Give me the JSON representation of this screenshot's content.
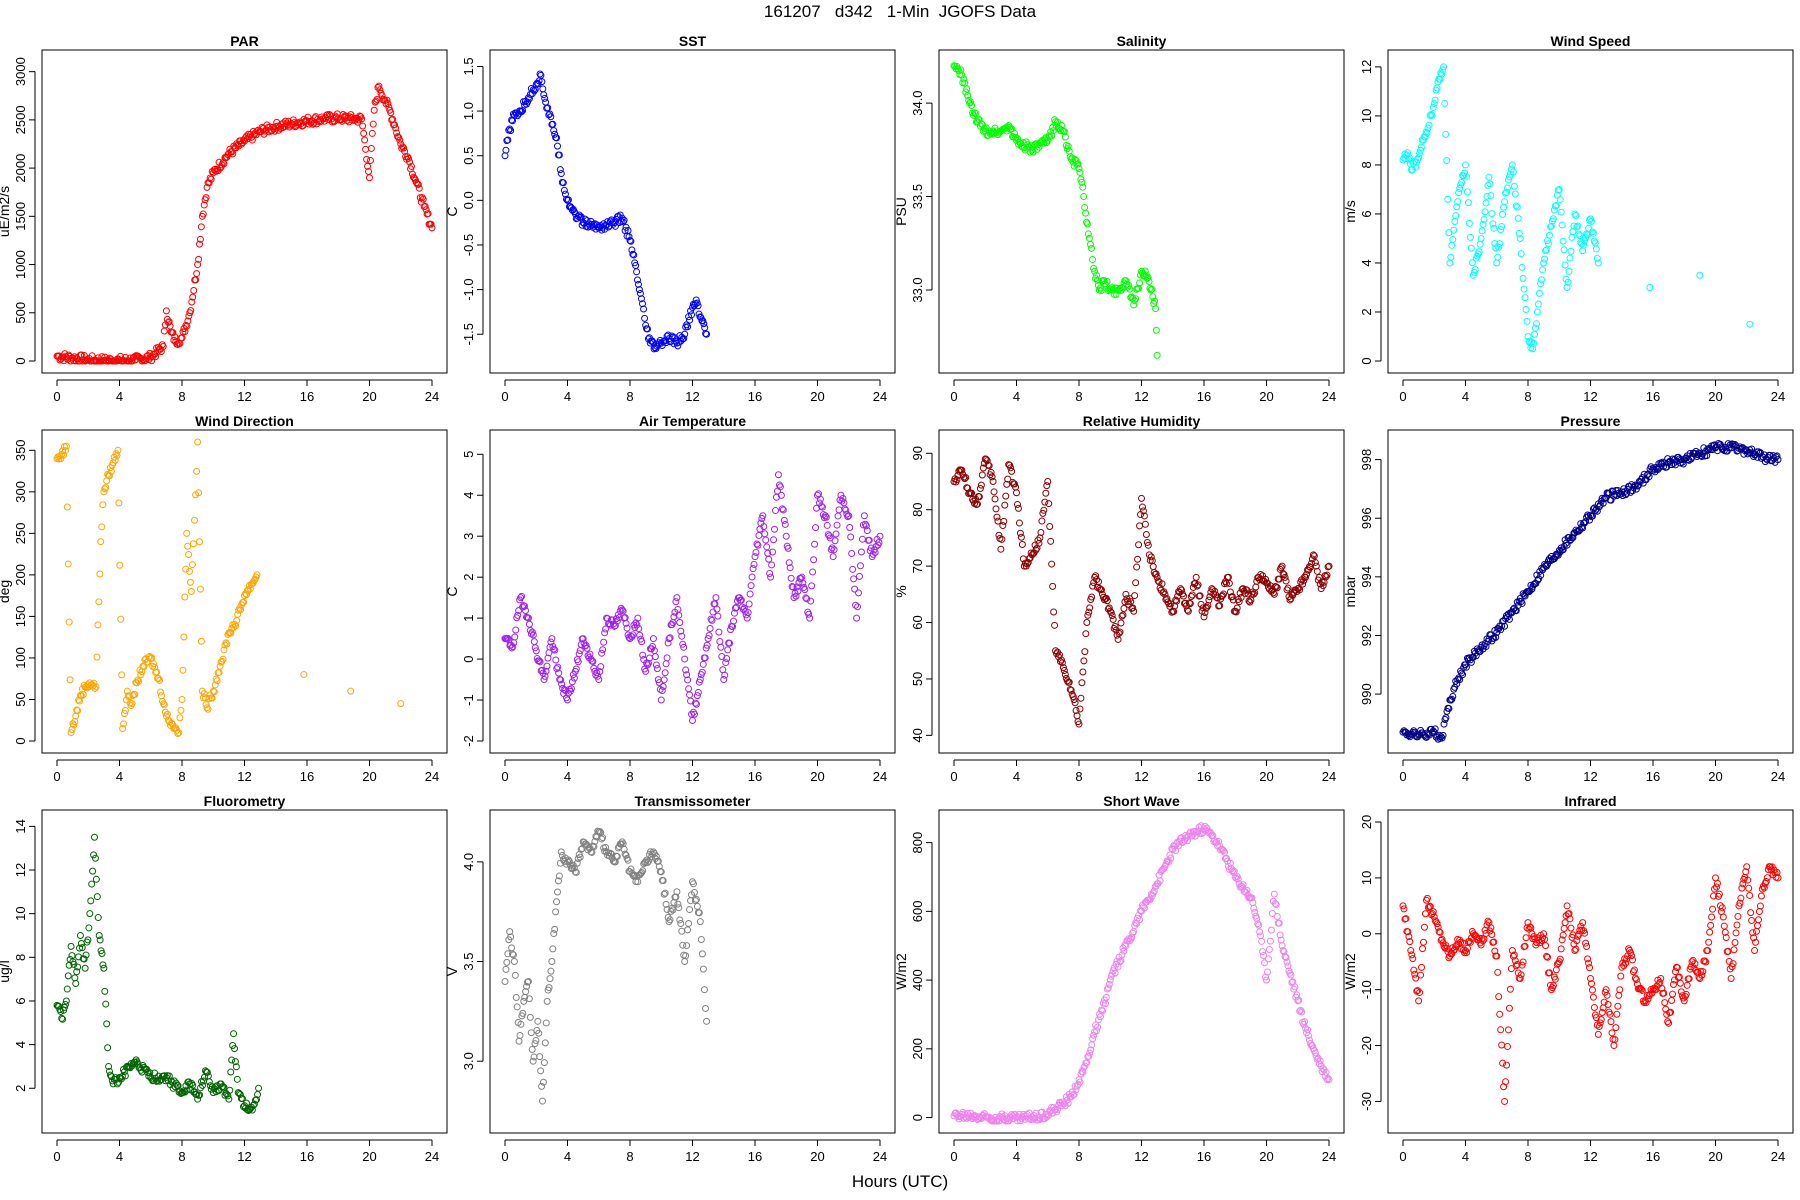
{
  "title": "161207   d342   1-Min  JGOFS Data",
  "x_axis_label": "Hours (UTC)",
  "chart_data": [
    {
      "type": "scatter",
      "title": "PAR",
      "ylabel": "uE/m2/s",
      "color": "#ff0000",
      "xlim": [
        0,
        24
      ],
      "xticks": [
        0,
        4,
        8,
        12,
        16,
        20,
        24
      ],
      "ylim": [
        0,
        3100
      ],
      "yticks": [
        0,
        500,
        1000,
        1500,
        2000,
        2500,
        3000
      ],
      "x": [
        0,
        1,
        2,
        3,
        4,
        5,
        6,
        6.8,
        7,
        7.3,
        7.6,
        8,
        8.5,
        9,
        9.3,
        9.6,
        10,
        11,
        12,
        13,
        14,
        15,
        16,
        17,
        18,
        19,
        19.5,
        20,
        20.3,
        20.6,
        21,
        21.3,
        21.6,
        22,
        22.5,
        23,
        23.5,
        24
      ],
      "y": [
        50,
        30,
        10,
        5,
        5,
        10,
        40,
        150,
        520,
        300,
        200,
        240,
        500,
        1000,
        1500,
        1800,
        1950,
        2150,
        2280,
        2380,
        2430,
        2460,
        2490,
        2510,
        2520,
        2510,
        2510,
        1900,
        2600,
        2850,
        2700,
        2600,
        2450,
        2250,
        2100,
        1850,
        1600,
        1380
      ]
    },
    {
      "type": "scatter",
      "title": "SST",
      "ylabel": "C",
      "color": "#0000ff",
      "xlim": [
        0,
        24
      ],
      "xticks": [
        0,
        4,
        8,
        12,
        16,
        20,
        24
      ],
      "ylim": [
        -1.8,
        1.55
      ],
      "yticks": [
        -1.5,
        -1.0,
        -0.5,
        0.0,
        0.5,
        1.0,
        1.5
      ],
      "x": [
        0,
        0.3,
        0.6,
        1,
        1.5,
        2,
        2.3,
        2.6,
        3,
        3.3,
        3.6,
        4,
        4.5,
        5,
        6,
        7,
        7.5,
        8,
        8.3,
        8.6,
        9,
        9.3,
        9.6,
        10,
        10.5,
        11,
        11.5,
        12,
        12.3,
        12.6,
        12.9
      ],
      "y": [
        0.5,
        0.8,
        0.95,
        1.0,
        1.15,
        1.3,
        1.4,
        1.1,
        0.85,
        0.7,
        0.3,
        0.0,
        -0.15,
        -0.25,
        -0.3,
        -0.25,
        -0.2,
        -0.45,
        -0.7,
        -1.0,
        -1.4,
        -1.6,
        -1.65,
        -1.6,
        -1.55,
        -1.6,
        -1.5,
        -1.2,
        -1.15,
        -1.35,
        -1.5
      ]
    },
    {
      "type": "scatter",
      "title": "Salinity",
      "ylabel": "PSU",
      "color": "#00ff00",
      "xlim": [
        0,
        24
      ],
      "xticks": [
        0,
        4,
        8,
        12,
        16,
        20,
        24
      ],
      "ylim": [
        32.62,
        34.22
      ],
      "yticks": [
        33.0,
        33.5,
        34.0
      ],
      "x": [
        0,
        0.5,
        1,
        1.5,
        2,
        2.5,
        3,
        3.5,
        4,
        5,
        6,
        6.5,
        7,
        7.5,
        8,
        8.3,
        8.6,
        9,
        9.3,
        9.6,
        10,
        10.5,
        11,
        11.5,
        12,
        12.3,
        12.6,
        12.9,
        13
      ],
      "y": [
        34.2,
        34.15,
        34.0,
        33.9,
        33.85,
        33.85,
        33.85,
        33.88,
        33.8,
        33.75,
        33.8,
        33.9,
        33.85,
        33.7,
        33.65,
        33.5,
        33.3,
        33.1,
        33.0,
        33.05,
        33.0,
        33.0,
        33.05,
        32.92,
        33.1,
        33.08,
        33.0,
        32.9,
        32.65
      ]
    },
    {
      "type": "scatter",
      "title": "Wind Speed",
      "ylabel": "m/s",
      "color": "#00ffff",
      "xlim": [
        0,
        24
      ],
      "xticks": [
        0,
        4,
        8,
        12,
        16,
        20,
        24
      ],
      "ylim": [
        0,
        12.2
      ],
      "yticks": [
        0,
        2,
        4,
        6,
        8,
        10,
        12
      ],
      "x": [
        0,
        0.3,
        0.6,
        1,
        1.3,
        1.6,
        2,
        2.3,
        2.6,
        3,
        3.5,
        4,
        4.5,
        5,
        5.5,
        6,
        6.5,
        7,
        7.5,
        8,
        8.3,
        8.6,
        9,
        9.5,
        10,
        10.5,
        11,
        11.5,
        12,
        12.5,
        15.8,
        19,
        22.2
      ],
      "y": [
        8.2,
        8.5,
        7.8,
        8.3,
        9.0,
        9.5,
        10.5,
        11.5,
        12.0,
        4.0,
        6.5,
        8.0,
        3.5,
        5.0,
        7.5,
        4.0,
        6.5,
        8.0,
        5.0,
        1.0,
        0.5,
        2.0,
        4.0,
        5.5,
        7.0,
        3.0,
        6.0,
        4.5,
        5.8,
        4.0,
        3.0,
        3.5,
        1.5
      ]
    },
    {
      "type": "scatter",
      "title": "Wind Direction",
      "ylabel": "deg",
      "color": "#ffa500",
      "xlim": [
        0,
        24
      ],
      "xticks": [
        0,
        4,
        8,
        12,
        16,
        20,
        24
      ],
      "ylim": [
        0,
        360
      ],
      "yticks": [
        0,
        50,
        100,
        150,
        200,
        250,
        300,
        350
      ],
      "x": [
        0,
        0.3,
        0.6,
        0.9,
        1.2,
        1.5,
        1.8,
        2.1,
        2.5,
        2.8,
        3,
        3.3,
        3.6,
        3.9,
        4.2,
        4.5,
        4.8,
        5.1,
        5.5,
        6,
        6.5,
        7,
        7.4,
        7.8,
        8,
        8.3,
        8.6,
        9,
        9.3,
        9.6,
        10,
        10.5,
        11,
        11.5,
        12,
        12.5,
        12.8,
        15.8,
        18.8,
        22
      ],
      "y": [
        340,
        345,
        355,
        10,
        30,
        55,
        65,
        70,
        65,
        240,
        300,
        320,
        335,
        350,
        15,
        60,
        45,
        70,
        90,
        100,
        75,
        30,
        20,
        10,
        50,
        250,
        180,
        360,
        60,
        40,
        60,
        95,
        130,
        145,
        175,
        190,
        200,
        80,
        60,
        45
      ]
    },
    {
      "type": "scatter",
      "title": "Air Temperature",
      "ylabel": "C",
      "color": "#a020f0",
      "xlim": [
        0,
        24
      ],
      "xticks": [
        0,
        4,
        8,
        12,
        16,
        20,
        24
      ],
      "ylim": [
        -2,
        5.3
      ],
      "yticks": [
        -2,
        -1,
        0,
        1,
        2,
        3,
        4,
        5
      ],
      "x": [
        0,
        0.5,
        1,
        1.5,
        2,
        2.5,
        3,
        3.5,
        4,
        4.5,
        5,
        5.5,
        6,
        6.5,
        7,
        7.5,
        8,
        8.5,
        9,
        9.5,
        10,
        10.5,
        11,
        11.5,
        12,
        12.5,
        13,
        13.5,
        14,
        14.5,
        15,
        15.5,
        16,
        16.5,
        17,
        17.5,
        18,
        18.5,
        19,
        19.5,
        20,
        20.5,
        21,
        21.5,
        22,
        22.5,
        23,
        23.5,
        24
      ],
      "y": [
        0.5,
        0.3,
        1.5,
        1.0,
        0.2,
        -0.5,
        0.5,
        -0.5,
        -1.0,
        -0.3,
        0.5,
        0.0,
        -0.5,
        1.0,
        0.8,
        1.2,
        0.5,
        1.0,
        -0.3,
        0.5,
        -1.0,
        0.5,
        1.5,
        0.0,
        -1.5,
        -0.5,
        0.5,
        1.5,
        -0.5,
        0.8,
        1.5,
        1.0,
        2.5,
        3.5,
        2.0,
        4.5,
        3.0,
        1.5,
        2.0,
        1.0,
        4.0,
        3.5,
        2.5,
        4.0,
        3.5,
        1.0,
        3.5,
        2.5,
        3.0
      ]
    },
    {
      "type": "scatter",
      "title": "Relative Humidity",
      "ylabel": "%",
      "color": "#8b0000",
      "xlim": [
        0,
        24
      ],
      "xticks": [
        0,
        4,
        8,
        12,
        16,
        20,
        24
      ],
      "ylim": [
        39,
        92
      ],
      "yticks": [
        40,
        50,
        60,
        70,
        80,
        90
      ],
      "x": [
        0,
        0.5,
        1,
        1.5,
        2,
        2.5,
        3,
        3.5,
        4,
        4.5,
        5,
        5.5,
        6,
        6.5,
        7,
        7.5,
        8,
        8.5,
        9,
        9.5,
        10,
        10.5,
        11,
        11.5,
        12,
        12.5,
        13,
        13.5,
        14,
        14.5,
        15,
        15.5,
        16,
        16.5,
        17,
        17.5,
        18,
        18.5,
        19,
        19.5,
        20,
        20.5,
        21,
        21.5,
        22,
        22.5,
        23,
        23.5,
        24
      ],
      "y": [
        85,
        87,
        83,
        81,
        89,
        85,
        73,
        88,
        83,
        70,
        72,
        75,
        85,
        55,
        52,
        48,
        42,
        60,
        68,
        65,
        62,
        57,
        65,
        62,
        82,
        72,
        68,
        65,
        62,
        66,
        62,
        68,
        61,
        66,
        63,
        68,
        62,
        66,
        64,
        68,
        67,
        65,
        70,
        64,
        66,
        68,
        72,
        66,
        70
      ]
    },
    {
      "type": "scatter",
      "title": "Pressure",
      "ylabel": "mbar",
      "color": "#00008b",
      "xlim": [
        0,
        24
      ],
      "xticks": [
        0,
        4,
        8,
        12,
        16,
        20,
        24
      ],
      "ylim": [
        988.4,
        998.6
      ],
      "yticks": [
        990,
        992,
        994,
        996,
        998
      ],
      "x": [
        0,
        1,
        2,
        2.5,
        3,
        3.5,
        4,
        5,
        6,
        7,
        8,
        9,
        10,
        11,
        12,
        13,
        14,
        15,
        16,
        17,
        18,
        19,
        20,
        21,
        22,
        23,
        24
      ],
      "y": [
        988.7,
        988.6,
        988.7,
        988.5,
        989.8,
        990.5,
        991.0,
        991.6,
        992.1,
        992.8,
        993.5,
        994.3,
        994.9,
        995.5,
        996.1,
        996.7,
        996.9,
        997.1,
        997.7,
        997.9,
        998.0,
        998.2,
        998.4,
        998.4,
        998.3,
        998.1,
        998.0
      ]
    },
    {
      "type": "scatter",
      "title": "Fluorometry",
      "ylabel": "ug/l",
      "color": "#006400",
      "xlim": [
        0,
        24
      ],
      "xticks": [
        0,
        4,
        8,
        12,
        16,
        20,
        24
      ],
      "ylim": [
        0.5,
        14.2
      ],
      "yticks": [
        2,
        4,
        6,
        8,
        10,
        12,
        14
      ],
      "x": [
        0,
        0.3,
        0.6,
        0.9,
        1.2,
        1.5,
        1.8,
        2.1,
        2.4,
        2.7,
        3,
        3.3,
        3.6,
        4,
        5,
        6,
        7,
        8,
        8.5,
        9,
        9.5,
        10,
        10.5,
        11,
        11.3,
        11.6,
        12,
        12.5,
        12.9
      ],
      "y": [
        5.8,
        5.2,
        6.0,
        8.5,
        6.8,
        9.0,
        7.5,
        10.0,
        13.5,
        9.0,
        7.5,
        3.0,
        2.2,
        2.5,
        3.2,
        2.5,
        2.5,
        1.8,
        2.2,
        1.5,
        2.8,
        1.8,
        2.2,
        1.5,
        4.5,
        1.8,
        1.2,
        1.0,
        2.0
      ]
    },
    {
      "type": "scatter",
      "title": "Transmissometer",
      "ylabel": "V",
      "color": "#808080",
      "xlim": [
        0,
        24
      ],
      "xticks": [
        0,
        4,
        8,
        12,
        16,
        20,
        24
      ],
      "ylim": [
        2.7,
        4.2
      ],
      "yticks": [
        3.0,
        3.5,
        4.0
      ],
      "x": [
        0,
        0.3,
        0.6,
        0.9,
        1.2,
        1.5,
        1.8,
        2.1,
        2.4,
        2.7,
        3,
        3.3,
        3.6,
        4,
        4.5,
        5,
        5.5,
        6,
        6.5,
        7,
        7.5,
        8,
        8.5,
        9,
        9.5,
        10,
        10.5,
        11,
        11.5,
        12,
        12.5,
        12.9
      ],
      "y": [
        3.4,
        3.65,
        3.5,
        3.1,
        3.3,
        3.4,
        3.0,
        3.2,
        2.8,
        3.3,
        3.5,
        3.8,
        4.05,
        4.0,
        3.95,
        4.1,
        4.05,
        4.15,
        4.05,
        4.0,
        4.1,
        3.95,
        3.9,
        4.0,
        4.05,
        3.95,
        3.7,
        3.85,
        3.5,
        3.9,
        3.7,
        3.2
      ]
    },
    {
      "type": "scatter",
      "title": "Short Wave",
      "ylabel": "W/m2",
      "color": "#ee82ee",
      "xlim": [
        0,
        24
      ],
      "xticks": [
        0,
        4,
        8,
        12,
        16,
        20,
        24
      ],
      "ylim": [
        -10,
        860
      ],
      "yticks": [
        0,
        200,
        400,
        600,
        800
      ],
      "x": [
        0,
        1,
        2,
        3,
        4,
        5,
        6,
        7,
        7.5,
        8,
        8.5,
        9,
        9.5,
        10,
        11,
        12,
        13,
        14,
        15,
        16,
        16.5,
        17,
        18,
        19,
        19.5,
        20,
        20.5,
        21,
        21.5,
        22,
        22.5,
        23,
        23.5,
        24
      ],
      "y": [
        5,
        5,
        2,
        0,
        0,
        2,
        10,
        40,
        60,
        110,
        160,
        250,
        310,
        400,
        500,
        600,
        680,
        780,
        820,
        840,
        820,
        790,
        700,
        640,
        560,
        400,
        650,
        500,
        420,
        340,
        260,
        200,
        150,
        110
      ]
    },
    {
      "type": "scatter",
      "title": "Infrared",
      "ylabel": "W/m2",
      "color": "#ff0000",
      "xlim": [
        0,
        24
      ],
      "xticks": [
        0,
        4,
        8,
        12,
        16,
        20,
        24
      ],
      "ylim": [
        -33.5,
        20
      ],
      "yticks": [
        -30,
        -20,
        -10,
        0,
        10,
        20
      ],
      "x": [
        0,
        0.5,
        1,
        1.5,
        2,
        2.5,
        3,
        3.5,
        4,
        4.5,
        5,
        5.5,
        6,
        6.5,
        7,
        7.5,
        8,
        8.5,
        9,
        9.5,
        10,
        10.5,
        11,
        11.5,
        12,
        12.5,
        13,
        13.5,
        14,
        14.5,
        15,
        15.5,
        16,
        16.5,
        17,
        17.5,
        18,
        18.5,
        19,
        19.5,
        20,
        20.5,
        21,
        21.5,
        22,
        22.5,
        23,
        23.5,
        24
      ],
      "y": [
        5,
        -3,
        -12,
        6,
        3,
        -1,
        -4,
        -1,
        -3,
        0,
        -2,
        2,
        -4,
        -30,
        -3,
        -8,
        2,
        -2,
        0,
        -10,
        -5,
        5,
        -3,
        2,
        -8,
        -18,
        -10,
        -20,
        -6,
        -3,
        -9,
        -12,
        -10,
        -8,
        -16,
        -6,
        -12,
        -5,
        -8,
        -3,
        10,
        3,
        -8,
        5,
        12,
        -3,
        8,
        12,
        10
      ]
    }
  ]
}
